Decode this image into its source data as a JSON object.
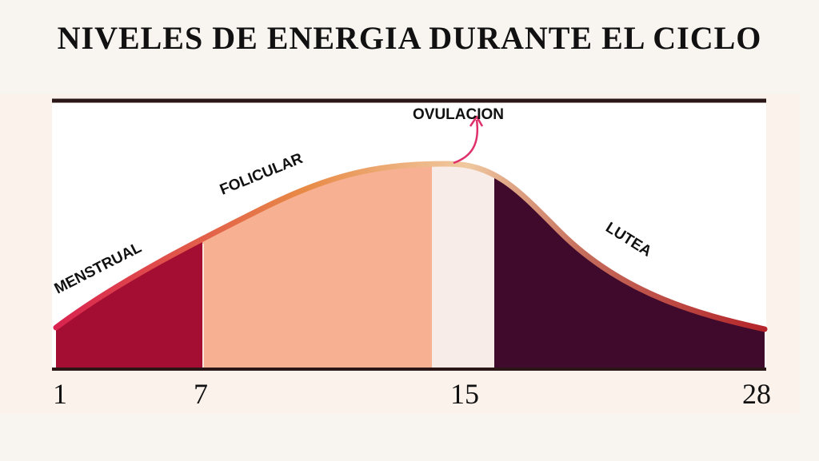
{
  "title": "NIVELES DE ENERGIA DURANTE EL CICLO",
  "phases": [
    {
      "label": "MENSTRUAL",
      "color": "#a30e32"
    },
    {
      "label": "FOLICULAR",
      "color": "#f7b192"
    },
    {
      "label": "OVULACION",
      "color": "#f8ece8"
    },
    {
      "label": "LUTEA",
      "color": "#3f0a2c"
    }
  ],
  "days": [
    "1",
    "7",
    "15",
    "28"
  ],
  "colors": {
    "curve_start": "#d9224f",
    "curve_mid": "#e88a46",
    "curve_peak": "#f0c9a0",
    "curve_end": "#b4242a",
    "arrow": "#e0306a",
    "rule": "#2a1616"
  }
}
